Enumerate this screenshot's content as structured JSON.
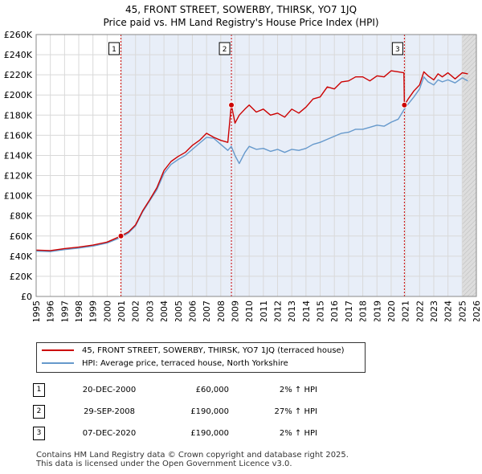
{
  "title_line1": "45, FRONT STREET, SOWERBY, THIRSK, YO7 1JQ",
  "title_line2": "Price paid vs. HM Land Registry's House Price Index (HPI)",
  "chart_data": {
    "type": "line",
    "title": "45, FRONT STREET, SOWERBY, THIRSK, YO7 1JQ — Price paid vs. HM Land Registry's House Price Index (HPI)",
    "xlabel": "",
    "ylabel": "",
    "xlim": [
      1995,
      2026
    ],
    "ylim": [
      0,
      260000
    ],
    "y_ticks": [
      0,
      20000,
      40000,
      60000,
      80000,
      100000,
      120000,
      140000,
      160000,
      180000,
      200000,
      220000,
      240000,
      260000
    ],
    "y_tick_labels": [
      "£0",
      "£20K",
      "£40K",
      "£60K",
      "£80K",
      "£100K",
      "£120K",
      "£140K",
      "£160K",
      "£180K",
      "£200K",
      "£220K",
      "£240K",
      "£260K"
    ],
    "x_ticks": [
      1995,
      1996,
      1997,
      1998,
      1999,
      2000,
      2001,
      2002,
      2003,
      2004,
      2005,
      2006,
      2007,
      2008,
      2009,
      2010,
      2011,
      2012,
      2013,
      2014,
      2015,
      2016,
      2017,
      2018,
      2019,
      2020,
      2021,
      2022,
      2023,
      2024,
      2025,
      2026
    ],
    "grid": true,
    "series": [
      {
        "name": "45, FRONT STREET, SOWERBY, THIRSK, YO7 1JQ (terraced house)",
        "color": "#cc0000",
        "x": [
          1995,
          1996,
          1997,
          1998,
          1999,
          2000,
          2000.97,
          2001.5,
          2002,
          2002.5,
          2003,
          2003.5,
          2004,
          2004.5,
          2005,
          2005.5,
          2006,
          2006.5,
          2007,
          2007.5,
          2008,
          2008.5,
          2008.74,
          2008.75,
          2009,
          2009.3,
          2009.7,
          2010,
          2010.5,
          2011,
          2011.5,
          2012,
          2012.5,
          2013,
          2013.5,
          2014,
          2014.5,
          2015,
          2015.5,
          2016,
          2016.5,
          2017,
          2017.5,
          2018,
          2018.5,
          2019,
          2019.5,
          2020,
          2020.5,
          2020.9,
          2020.93,
          2021.2,
          2021.6,
          2022,
          2022.3,
          2022.6,
          2023,
          2023.3,
          2023.6,
          2024,
          2024.5,
          2025,
          2025.4
        ],
        "values": [
          46000,
          45500,
          47500,
          49000,
          51000,
          54000,
          60000,
          64000,
          71000,
          85000,
          96000,
          108000,
          125000,
          134000,
          139000,
          143000,
          150000,
          155000,
          162000,
          158000,
          155000,
          153000,
          190000,
          190000,
          172000,
          180000,
          186000,
          190000,
          183000,
          186000,
          180000,
          182000,
          178000,
          186000,
          182000,
          188000,
          196000,
          198000,
          208000,
          206000,
          213000,
          214000,
          218000,
          218000,
          214000,
          219000,
          218000,
          224000,
          223000,
          222000,
          190000,
          196000,
          204000,
          210000,
          223000,
          219000,
          215000,
          221000,
          218000,
          222000,
          216000,
          222000,
          221000
        ]
      },
      {
        "name": "HPI: Average price, terraced house, North Yorkshire",
        "color": "#6699cc",
        "x": [
          1995,
          1996,
          1997,
          1998,
          1999,
          2000,
          2000.97,
          2001.5,
          2002,
          2002.5,
          2003,
          2003.5,
          2004,
          2004.5,
          2005,
          2005.5,
          2006,
          2006.5,
          2007,
          2007.5,
          2008,
          2008.5,
          2008.74,
          2009,
          2009.3,
          2009.7,
          2010,
          2010.5,
          2011,
          2011.5,
          2012,
          2012.5,
          2013,
          2013.5,
          2014,
          2014.5,
          2015,
          2015.5,
          2016,
          2016.5,
          2017,
          2017.5,
          2018,
          2018.5,
          2019,
          2019.5,
          2020,
          2020.5,
          2020.93,
          2021.2,
          2021.6,
          2022,
          2022.3,
          2022.6,
          2023,
          2023.3,
          2023.6,
          2024,
          2024.5,
          2025,
          2025.4
        ],
        "values": [
          45000,
          44500,
          46500,
          48000,
          50000,
          53000,
          58500,
          63000,
          70000,
          84000,
          95000,
          106000,
          122000,
          131000,
          136000,
          140000,
          146000,
          152000,
          158000,
          157000,
          151000,
          145000,
          149000,
          140000,
          132000,
          143000,
          149000,
          146000,
          147000,
          144000,
          146000,
          143000,
          146000,
          145000,
          147000,
          151000,
          153000,
          156000,
          159000,
          162000,
          163000,
          166000,
          166000,
          168000,
          170000,
          169000,
          173000,
          176000,
          186000,
          191000,
          198000,
          206000,
          218000,
          213000,
          210000,
          215000,
          213000,
          215000,
          212000,
          217000,
          214000
        ]
      }
    ],
    "markers": [
      {
        "label": "1",
        "x": 2000.97,
        "value": 60000
      },
      {
        "label": "2",
        "x": 2008.75,
        "value": 190000
      },
      {
        "label": "3",
        "x": 2020.93,
        "value": 190000
      }
    ],
    "shaded_from": 2025.0,
    "legend_placement": "below"
  },
  "legend": {
    "price_label": "45, FRONT STREET, SOWERBY, THIRSK, YO7 1JQ (terraced house)",
    "hpi_label": "HPI: Average price, terraced house, North Yorkshire"
  },
  "sales": [
    {
      "num": "1",
      "date": "20-DEC-2000",
      "price": "£60,000",
      "hpi": "2% ↑ HPI"
    },
    {
      "num": "2",
      "date": "29-SEP-2008",
      "price": "£190,000",
      "hpi": "27% ↑ HPI"
    },
    {
      "num": "3",
      "date": "07-DEC-2020",
      "price": "£190,000",
      "hpi": "2% ↑ HPI"
    }
  ],
  "footer": {
    "line1": "Contains HM Land Registry data © Crown copyright and database right 2025.",
    "line2": "This data is licensed under the Open Government Licence v3.0."
  }
}
